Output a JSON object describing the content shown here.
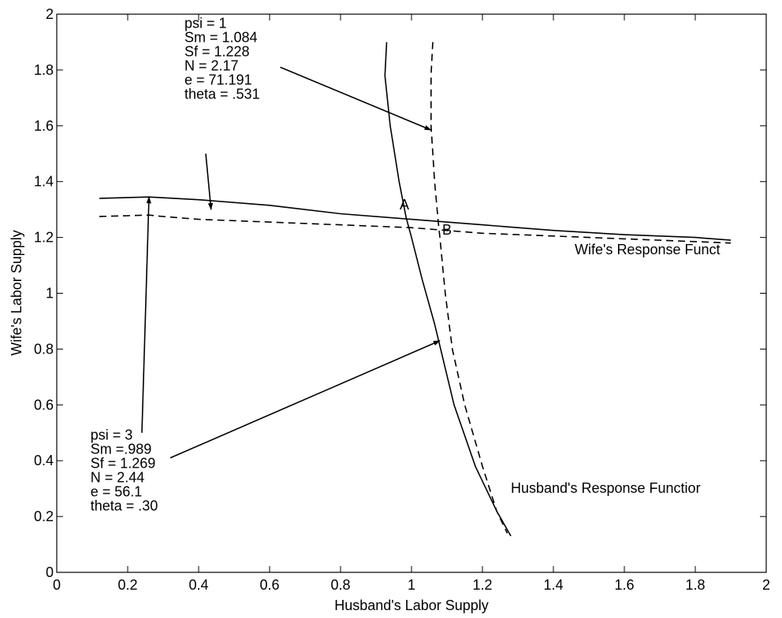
{
  "chart_data": {
    "type": "line",
    "xlabel": "Husband's Labor Supply",
    "ylabel": "Wife's Labor Supply",
    "xlim": [
      0,
      2
    ],
    "ylim": [
      0,
      2
    ],
    "x_ticks": [
      0,
      0.2,
      0.4,
      0.6,
      0.8,
      1,
      1.2,
      1.4,
      1.6,
      1.8,
      2
    ],
    "x_tick_labels": [
      "0",
      "0.2",
      "0.4",
      "0.6",
      "0.8",
      "1",
      "1.2",
      "1.4",
      "1.6",
      "1.8",
      "2"
    ],
    "y_ticks": [
      0,
      0.2,
      0.4,
      0.6,
      0.8,
      1,
      1.2,
      1.4,
      1.6,
      1.8,
      2
    ],
    "y_tick_labels": [
      "0",
      "0.2",
      "0.4",
      "0.6",
      "0.8",
      "1",
      "1.2",
      "1.4",
      "1.6",
      "1.8",
      "2"
    ],
    "grid": false,
    "series": [
      {
        "style": "solid",
        "color": "#000000",
        "points": [
          [
            0.12,
            1.34
          ],
          [
            0.26,
            1.345
          ],
          [
            0.4,
            1.335
          ],
          [
            0.6,
            1.315
          ],
          [
            0.8,
            1.285
          ],
          [
            1.0,
            1.265
          ],
          [
            1.2,
            1.245
          ],
          [
            1.4,
            1.225
          ],
          [
            1.6,
            1.21
          ],
          [
            1.8,
            1.2
          ],
          [
            1.9,
            1.19
          ]
        ]
      },
      {
        "style": "dashed",
        "color": "#000000",
        "points": [
          [
            0.12,
            1.275
          ],
          [
            0.26,
            1.28
          ],
          [
            0.3,
            1.275
          ],
          [
            0.4,
            1.265
          ],
          [
            0.6,
            1.255
          ],
          [
            0.8,
            1.245
          ],
          [
            1.0,
            1.235
          ],
          [
            1.2,
            1.215
          ],
          [
            1.4,
            1.205
          ],
          [
            1.6,
            1.195
          ],
          [
            1.8,
            1.185
          ],
          [
            1.9,
            1.18
          ]
        ]
      },
      {
        "style": "solid",
        "color": "#000000",
        "points": [
          [
            0.93,
            1.9
          ],
          [
            0.925,
            1.78
          ],
          [
            0.94,
            1.6
          ],
          [
            0.965,
            1.4
          ],
          [
            0.985,
            1.27
          ],
          [
            1.0,
            1.2
          ],
          [
            1.03,
            1.05
          ],
          [
            1.065,
            0.89
          ],
          [
            1.12,
            0.6
          ],
          [
            1.18,
            0.38
          ],
          [
            1.24,
            0.22
          ],
          [
            1.28,
            0.13
          ]
        ]
      },
      {
        "style": "dashed",
        "color": "#000000",
        "points": [
          [
            1.06,
            1.9
          ],
          [
            1.055,
            1.78
          ],
          [
            1.055,
            1.6
          ],
          [
            1.065,
            1.4
          ],
          [
            1.075,
            1.26
          ],
          [
            1.08,
            1.2
          ],
          [
            1.095,
            1.0
          ],
          [
            1.115,
            0.8
          ],
          [
            1.15,
            0.6
          ],
          [
            1.2,
            0.38
          ],
          [
            1.24,
            0.22
          ],
          [
            1.27,
            0.14
          ]
        ]
      }
    ],
    "point_labels": [
      {
        "text": "A",
        "x": 0.98,
        "y": 1.3
      },
      {
        "text": "B",
        "x": 1.1,
        "y": 1.21
      }
    ],
    "series_labels": [
      {
        "text": "Wife's Response Funct",
        "x": 1.46,
        "y": 1.14
      },
      {
        "text": "Husband's Response Functior",
        "x": 1.28,
        "y": 0.285
      }
    ],
    "annotations": [
      {
        "lines": [
          "psi = 1",
          "Sm = 1.084",
          "Sf = 1.228",
          "N = 2.17",
          "e = 71.191",
          "theta = .531"
        ],
        "text_x": 0.36,
        "text_y": 1.95,
        "arrows": [
          {
            "from": [
              0.63,
              1.81
            ],
            "to": [
              1.055,
              1.585
            ]
          },
          {
            "from": [
              0.42,
              1.5
            ],
            "to": [
              0.435,
              1.3
            ]
          }
        ]
      },
      {
        "lines": [
          "psi = 3",
          "Sm =.989",
          "Sf = 1.269",
          "N = 2.44",
          "e = 56.1",
          "theta = .30"
        ],
        "text_x": 0.095,
        "text_y": 0.475,
        "arrows": [
          {
            "from": [
              0.24,
              0.5
            ],
            "to": [
              0.26,
              1.345
            ]
          },
          {
            "from": [
              0.32,
              0.41
            ],
            "to": [
              1.08,
              0.83
            ]
          }
        ]
      }
    ]
  }
}
